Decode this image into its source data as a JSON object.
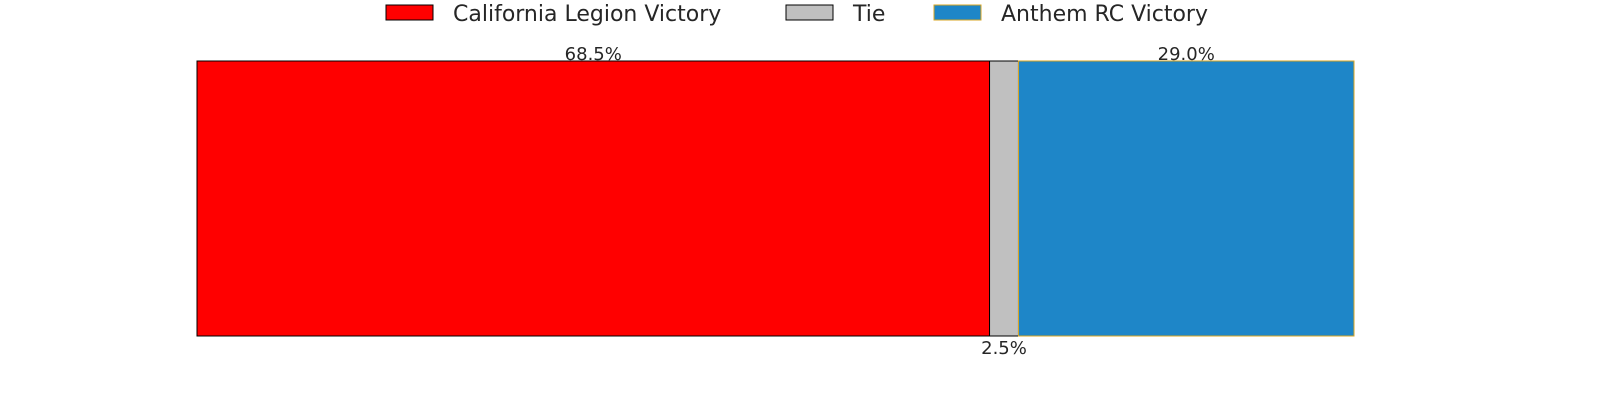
{
  "chart_data": {
    "type": "bar",
    "orientation": "horizontal",
    "stacked": true,
    "normalized_to_percent": true,
    "xlim": [
      0,
      100
    ],
    "grid": false,
    "axes_visible": false,
    "legend_position": "top-center",
    "series": [
      {
        "name": "California Legion Victory",
        "value": 68.5,
        "label": "68.5%",
        "color": "#FF0000",
        "edge": "#000000",
        "label_position": "above"
      },
      {
        "name": "Tie",
        "value": 2.5,
        "label": "2.5%",
        "color": "#C0C0C0",
        "edge": "#000000",
        "label_position": "below"
      },
      {
        "name": "Anthem RC Victory",
        "value": 29.0,
        "label": "29.0%",
        "color": "#1E86C8",
        "edge": "#DAA520",
        "label_position": "above"
      }
    ]
  }
}
